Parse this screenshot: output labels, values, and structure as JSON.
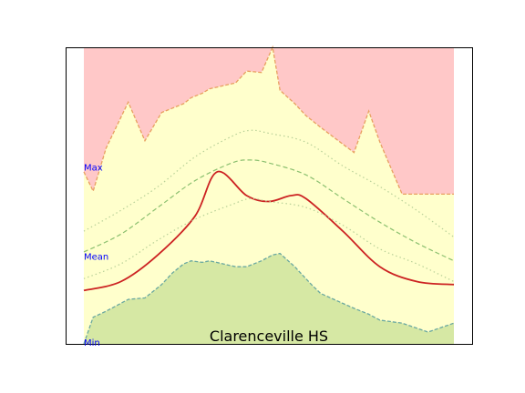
{
  "chart_data": {
    "type": "area",
    "title": "Clarenceville HS",
    "xlabel": "",
    "ylabel": "",
    "xlim": [
      0,
      100
    ],
    "ylim": [
      0,
      100
    ],
    "grid": false,
    "ticks_visible": false,
    "band_labels": [
      "Max",
      "Mean",
      "Min"
    ],
    "band_label_values": [
      59,
      29,
      0
    ],
    "label_color": "#0000ff",
    "x": [
      0,
      2.5,
      6,
      12,
      16.5,
      21,
      24,
      27,
      29,
      32,
      34,
      41,
      44,
      48,
      51,
      53,
      57,
      60,
      61.5,
      64,
      73,
      77,
      80,
      86,
      93,
      100
    ],
    "series": [
      {
        "role": "upper_band",
        "values": [
          100,
          100,
          100,
          100,
          100,
          100,
          100,
          100,
          100,
          100,
          100,
          100,
          100,
          100,
          100,
          100,
          100,
          100,
          100,
          100,
          100,
          100,
          100,
          100,
          100,
          100
        ],
        "color": "#ffc8c8"
      },
      {
        "role": "max_line",
        "values": [
          58,
          51.5,
          66,
          81.5,
          68.5,
          78,
          79.5,
          81,
          83,
          84.5,
          86,
          88,
          92,
          91.5,
          100,
          85.5,
          81,
          77,
          75.5,
          73,
          64.5,
          78.5,
          68,
          50.5,
          50.5,
          50.5
        ],
        "color": "#e8a060",
        "fill": "#ffffcc"
      },
      {
        "role": "min_line",
        "values": [
          0,
          9,
          11,
          15,
          15.5,
          20,
          24,
          27,
          28,
          27.5,
          28,
          26,
          26,
          28,
          30,
          30.5,
          26,
          22,
          20,
          17,
          12,
          10,
          8,
          7,
          4,
          7
        ],
        "color": "#6aa8a0",
        "fill": "#d6e8a4"
      }
    ],
    "curves": [
      {
        "role": "mean",
        "x": [
          0,
          10,
          20,
          30,
          36,
          44,
          50,
          56,
          60,
          70,
          80,
          90,
          100
        ],
        "values": [
          18,
          21,
          30,
          43,
          58,
          50,
          48,
          50,
          49,
          38,
          26,
          21,
          20
        ],
        "color": "#cc2222",
        "style": "solid"
      },
      {
        "role": "upper_dashed",
        "x": [
          0,
          10,
          20,
          30,
          40,
          45,
          50,
          60,
          70,
          80,
          90,
          100
        ],
        "values": [
          31,
          37,
          46,
          55,
          61,
          62,
          61,
          57,
          49,
          41,
          34,
          28
        ],
        "color": "#8cc070",
        "style": "dashed"
      },
      {
        "role": "upper_dotted",
        "x": [
          0,
          10,
          20,
          30,
          40,
          45,
          50,
          60,
          70,
          80,
          90,
          100
        ],
        "values": [
          38,
          45,
          53,
          63,
          70,
          72,
          71,
          68,
          60,
          53,
          45,
          36
        ],
        "color": "#b8d098",
        "style": "dotted"
      },
      {
        "role": "lower_dotted",
        "x": [
          0,
          10,
          20,
          30,
          40,
          45,
          50,
          60,
          70,
          80,
          90,
          100
        ],
        "values": [
          22,
          27,
          35,
          42,
          47,
          49,
          48,
          46,
          40,
          32,
          27,
          21
        ],
        "color": "#b8d098",
        "style": "dotted"
      }
    ]
  }
}
